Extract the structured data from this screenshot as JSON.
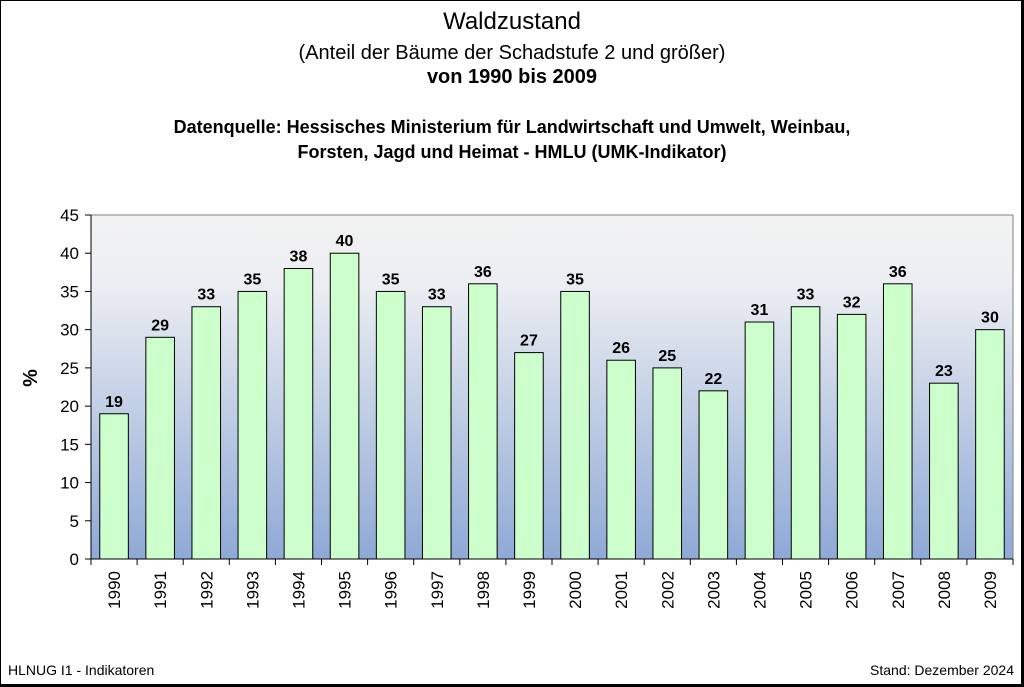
{
  "chart_data": {
    "type": "bar",
    "title": "Waldzustand",
    "subtitle": "(Anteil der Bäume der Schadstufe 2 und größer)",
    "period": "von 1990 bis 2009",
    "source_line1": "Datenquelle: Hessisches Ministerium für Landwirtschaft und Umwelt, Weinbau,",
    "source_line2": "Forsten, Jagd und Heimat - HMLU (UMK-Indikator)",
    "ylabel": "%",
    "ylim": [
      0,
      45
    ],
    "yticks": [
      0,
      5,
      10,
      15,
      20,
      25,
      30,
      35,
      40,
      45
    ],
    "grid": false,
    "categories": [
      "1990",
      "1991",
      "1992",
      "1993",
      "1994",
      "1995",
      "1996",
      "1997",
      "1998",
      "1999",
      "2000",
      "2001",
      "2002",
      "2003",
      "2004",
      "2005",
      "2006",
      "2007",
      "2008",
      "2009"
    ],
    "values": [
      19,
      29,
      33,
      35,
      38,
      40,
      35,
      33,
      36,
      27,
      35,
      26,
      25,
      22,
      31,
      33,
      32,
      36,
      23,
      30
    ],
    "bar_color": "#ccffcc"
  },
  "footer": {
    "left": "HLNUG I1 - Indikatoren",
    "right": "Stand: Dezember 2024"
  }
}
